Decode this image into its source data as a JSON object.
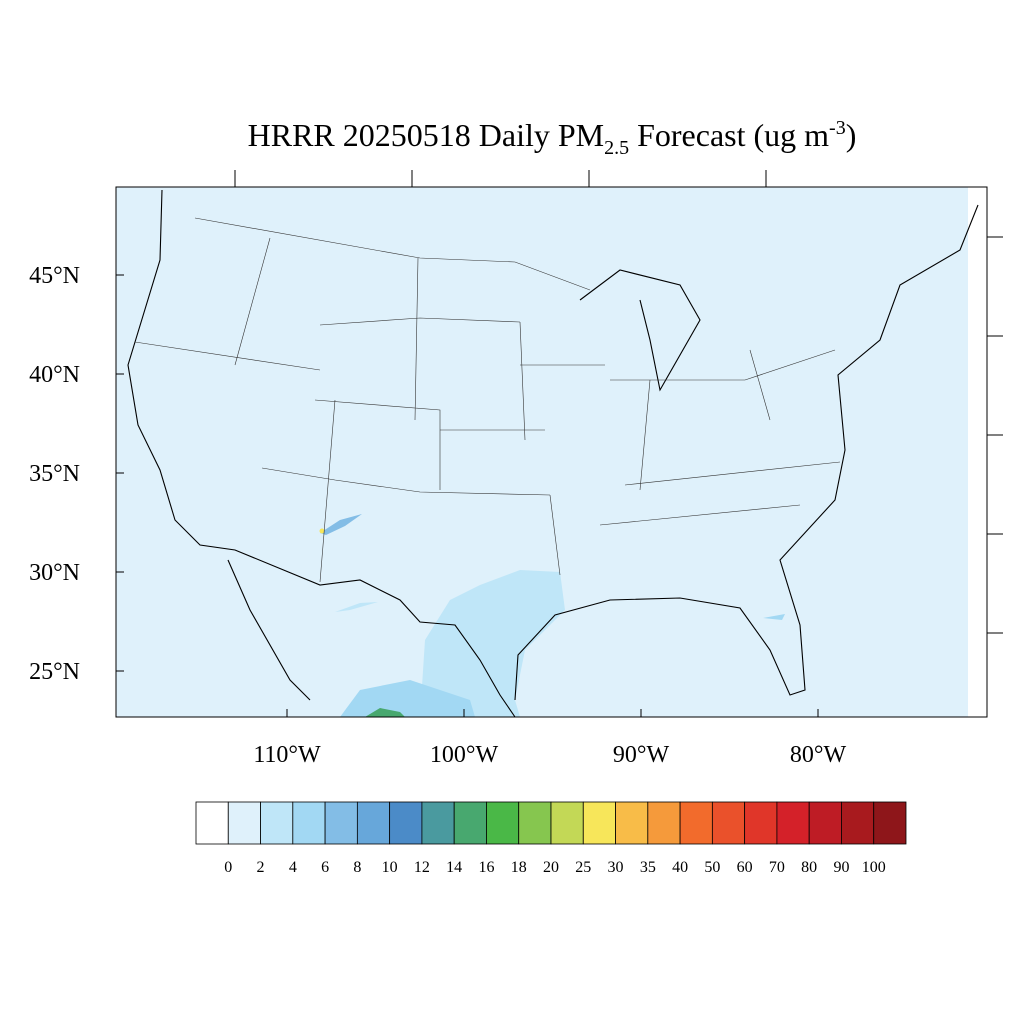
{
  "map": {
    "title": {
      "main": "HRRR 20250518 Daily PM",
      "sub": "2.5",
      "rest": " Forecast (ug m",
      "sup": "-3",
      "end": ")"
    },
    "lat_ticks": [
      {
        "value": 45,
        "label": "45°N"
      },
      {
        "value": 40,
        "label": "40°N"
      },
      {
        "value": 35,
        "label": "35°N"
      },
      {
        "value": 30,
        "label": "30°N"
      },
      {
        "value": 25,
        "label": "25°N"
      }
    ],
    "lon_ticks": [
      {
        "value": -110,
        "label": "110°W"
      },
      {
        "value": -100,
        "label": "100°W"
      },
      {
        "value": -90,
        "label": "90°W"
      },
      {
        "value": -80,
        "label": "80°W"
      }
    ],
    "colorbar": {
      "levels": [
        0,
        2,
        4,
        6,
        8,
        10,
        12,
        14,
        16,
        18,
        20,
        25,
        30,
        35,
        40,
        50,
        60,
        70,
        80,
        90,
        100
      ],
      "colors": [
        "#ffffff",
        "#dff1fb",
        "#bfe6f8",
        "#a2d8f3",
        "#83bde6",
        "#67a7da",
        "#4b8bc8",
        "#4a9a9f",
        "#48a86f",
        "#4ab847",
        "#86c64f",
        "#c3d856",
        "#f7e65a",
        "#f8bc48",
        "#f59a3b",
        "#f26b2c",
        "#ea512b",
        "#e03629",
        "#d42129",
        "#be1c25",
        "#a81a1e",
        "#8e161a"
      ]
    }
  }
}
